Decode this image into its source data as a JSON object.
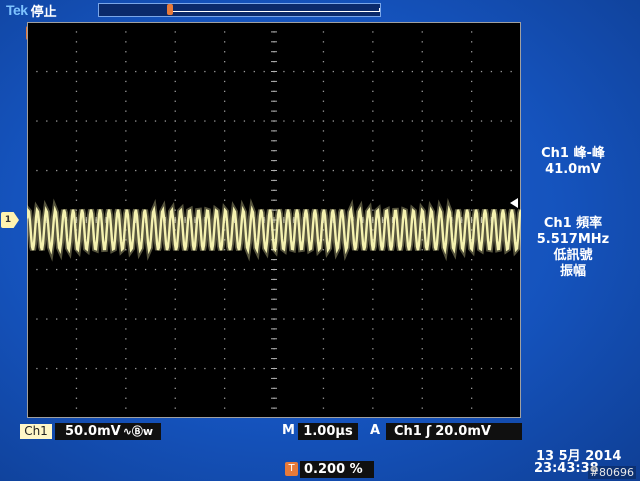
{
  "header": {
    "brand": "Tek",
    "run_state": "停止"
  },
  "markers": {
    "trigger_position": "T",
    "channel_ground": "1"
  },
  "measurements": {
    "peak_to_peak": {
      "label": "Ch1 峰-峰",
      "value": "41.0mV"
    },
    "frequency": {
      "label": "Ch1 頻率",
      "value": "5.517MHz",
      "note_1": "低訊號",
      "note_2": "振幅"
    }
  },
  "status": {
    "channel_chip": "Ch1",
    "vertical_scale": "50.0mV",
    "bandwidth_icon": "∿Ⓑw",
    "horizontal_label": "M",
    "horizontal_scale": "1.00µs",
    "acquire_label": "A",
    "trigger_source": "Ch1",
    "trigger_slope_icon": "ʃ",
    "trigger_level": "20.0mV",
    "date": "13 5月  2014",
    "time": "23:43:38",
    "trigger_offset_chip": "T",
    "trigger_offset": "0.200 %"
  },
  "watermark": "#80696",
  "colors": {
    "screen_bg": "#1553bd",
    "graticule_bg": "#000000",
    "trace": "#f5f2b0",
    "accent_orange": "#e87a3a"
  },
  "chart_data": {
    "type": "line",
    "divisions": {
      "horizontal": 10,
      "vertical": 8
    },
    "volts_per_div_mV": 50.0,
    "time_per_div_us": 1.0,
    "series": [
      {
        "frequency_MHz": 5.517,
        "peak_to_peak_mV": 41.0,
        "offset_div": 0.2
      }
    ]
  }
}
